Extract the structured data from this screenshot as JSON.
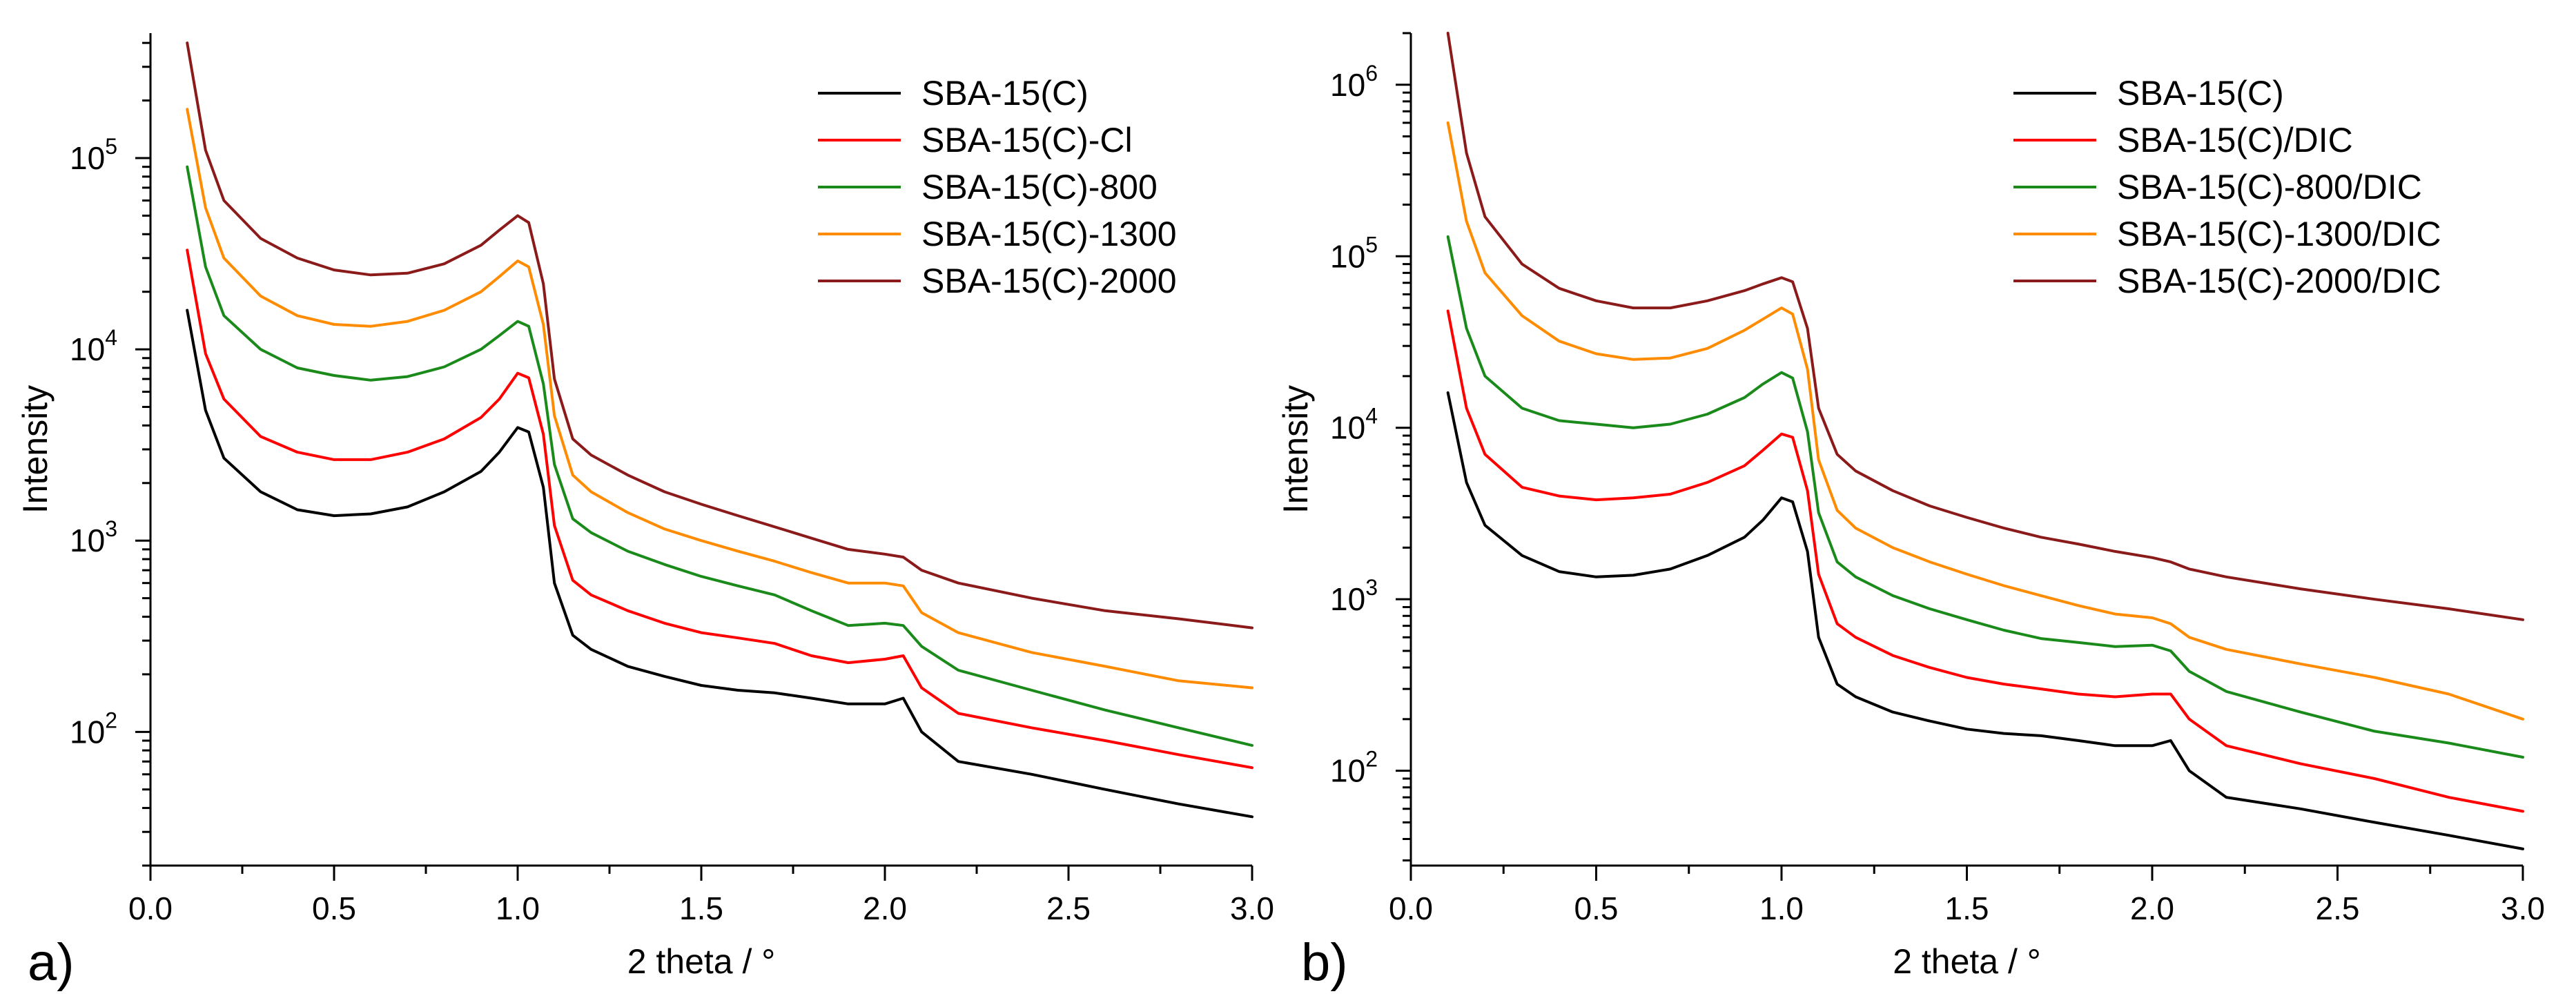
{
  "chart_data": [
    {
      "type": "line",
      "panel_label": "a)",
      "xlabel": "2 theta / °",
      "ylabel": "Intensity",
      "xlim": [
        0.0,
        3.0
      ],
      "ylim": [
        20,
        450000
      ],
      "yscale": "log",
      "x_ticks": [
        "0.0",
        "0.5",
        "1.0",
        "1.5",
        "2.0",
        "2.5",
        "3.0"
      ],
      "y_ticks": [
        {
          "base": "10",
          "exp": "2",
          "value": 100
        },
        {
          "base": "10",
          "exp": "3",
          "value": 1000
        },
        {
          "base": "10",
          "exp": "4",
          "value": 10000
        },
        {
          "base": "10",
          "exp": "5",
          "value": 100000
        }
      ],
      "legend_position": "top-right",
      "series": [
        {
          "name": "SBA-15(C)",
          "color": "#000000",
          "x": [
            0.1,
            0.15,
            0.2,
            0.3,
            0.4,
            0.5,
            0.6,
            0.7,
            0.8,
            0.9,
            0.95,
            1.0,
            1.03,
            1.07,
            1.1,
            1.15,
            1.2,
            1.3,
            1.4,
            1.5,
            1.6,
            1.7,
            1.8,
            1.9,
            2.0,
            2.05,
            2.1,
            2.2,
            2.4,
            2.6,
            2.8,
            3.0
          ],
          "y": [
            16000,
            4800,
            2700,
            1800,
            1450,
            1350,
            1380,
            1500,
            1800,
            2300,
            2900,
            3900,
            3700,
            1900,
            600,
            320,
            270,
            220,
            195,
            175,
            165,
            160,
            150,
            140,
            140,
            150,
            100,
            70,
            60,
            50,
            42,
            36
          ]
        },
        {
          "name": "SBA-15(C)-Cl",
          "color": "#ff0000",
          "x": [
            0.1,
            0.15,
            0.2,
            0.3,
            0.4,
            0.5,
            0.6,
            0.7,
            0.8,
            0.9,
            0.95,
            1.0,
            1.03,
            1.07,
            1.1,
            1.15,
            1.2,
            1.3,
            1.4,
            1.5,
            1.6,
            1.7,
            1.8,
            1.9,
            2.0,
            2.05,
            2.1,
            2.2,
            2.4,
            2.6,
            2.8,
            3.0
          ],
          "y": [
            33000,
            9500,
            5500,
            3500,
            2900,
            2650,
            2650,
            2900,
            3400,
            4400,
            5500,
            7500,
            7100,
            3600,
            1200,
            620,
            520,
            430,
            370,
            330,
            310,
            290,
            250,
            230,
            240,
            250,
            170,
            125,
            105,
            90,
            76,
            65
          ]
        },
        {
          "name": "SBA-15(C)-800",
          "color": "#1a8a1a",
          "x": [
            0.1,
            0.15,
            0.2,
            0.3,
            0.4,
            0.5,
            0.6,
            0.7,
            0.8,
            0.9,
            0.95,
            1.0,
            1.03,
            1.07,
            1.1,
            1.15,
            1.2,
            1.3,
            1.4,
            1.5,
            1.6,
            1.7,
            1.8,
            1.9,
            2.0,
            2.05,
            2.1,
            2.2,
            2.4,
            2.6,
            2.8,
            3.0
          ],
          "y": [
            90000,
            27000,
            15000,
            10000,
            8000,
            7300,
            6900,
            7200,
            8100,
            10000,
            11800,
            14000,
            13200,
            6600,
            2500,
            1300,
            1100,
            880,
            750,
            650,
            580,
            520,
            430,
            360,
            370,
            360,
            280,
            210,
            165,
            130,
            105,
            85
          ]
        },
        {
          "name": "SBA-15(C)-1300",
          "color": "#ff8c00",
          "x": [
            0.1,
            0.15,
            0.2,
            0.3,
            0.4,
            0.5,
            0.6,
            0.7,
            0.8,
            0.9,
            0.95,
            1.0,
            1.03,
            1.07,
            1.1,
            1.15,
            1.2,
            1.3,
            1.4,
            1.5,
            1.6,
            1.7,
            1.8,
            1.9,
            2.0,
            2.05,
            2.1,
            2.2,
            2.4,
            2.6,
            2.8,
            3.0
          ],
          "y": [
            180000,
            55000,
            30000,
            19000,
            15000,
            13500,
            13200,
            14000,
            16000,
            20000,
            24000,
            29000,
            27000,
            13500,
            4500,
            2200,
            1800,
            1400,
            1150,
            1000,
            880,
            780,
            680,
            600,
            600,
            580,
            420,
            330,
            260,
            220,
            185,
            170
          ]
        },
        {
          "name": "SBA-15(C)-2000",
          "color": "#8b1a1a",
          "x": [
            0.1,
            0.15,
            0.2,
            0.3,
            0.4,
            0.5,
            0.6,
            0.7,
            0.8,
            0.9,
            0.95,
            1.0,
            1.03,
            1.07,
            1.1,
            1.15,
            1.2,
            1.3,
            1.4,
            1.5,
            1.6,
            1.7,
            1.8,
            1.9,
            2.0,
            2.05,
            2.1,
            2.2,
            2.4,
            2.6,
            2.8,
            3.0
          ],
          "y": [
            400000,
            110000,
            60000,
            38000,
            30000,
            26000,
            24500,
            25000,
            28000,
            35000,
            42000,
            50000,
            46000,
            22000,
            7000,
            3400,
            2800,
            2200,
            1800,
            1550,
            1350,
            1180,
            1030,
            900,
            850,
            820,
            700,
            600,
            500,
            430,
            390,
            350
          ]
        }
      ]
    },
    {
      "type": "line",
      "panel_label": "b)",
      "xlabel": "2 theta / °",
      "ylabel": "Intensity",
      "xlim": [
        0.0,
        3.0
      ],
      "ylim": [
        28,
        2000000
      ],
      "yscale": "log",
      "x_ticks": [
        "0.0",
        "0.5",
        "1.0",
        "1.5",
        "2.0",
        "2.5",
        "3.0"
      ],
      "y_ticks": [
        {
          "base": "10",
          "exp": "2",
          "value": 100
        },
        {
          "base": "10",
          "exp": "3",
          "value": 1000
        },
        {
          "base": "10",
          "exp": "4",
          "value": 10000
        },
        {
          "base": "10",
          "exp": "5",
          "value": 100000
        },
        {
          "base": "10",
          "exp": "6",
          "value": 1000000
        }
      ],
      "legend_position": "top-right",
      "series": [
        {
          "name": "SBA-15(C)",
          "color": "#000000",
          "x": [
            0.1,
            0.15,
            0.2,
            0.3,
            0.4,
            0.5,
            0.6,
            0.7,
            0.8,
            0.9,
            0.95,
            1.0,
            1.03,
            1.07,
            1.1,
            1.15,
            1.2,
            1.3,
            1.4,
            1.5,
            1.6,
            1.7,
            1.8,
            1.9,
            2.0,
            2.05,
            2.1,
            2.2,
            2.4,
            2.6,
            2.8,
            3.0
          ],
          "y": [
            16000,
            4800,
            2700,
            1800,
            1450,
            1350,
            1380,
            1500,
            1800,
            2300,
            2900,
            3900,
            3700,
            1900,
            600,
            320,
            270,
            220,
            195,
            175,
            165,
            160,
            150,
            140,
            140,
            150,
            100,
            70,
            60,
            50,
            42,
            35
          ]
        },
        {
          "name": "SBA-15(C)/DIC",
          "color": "#ff0000",
          "x": [
            0.1,
            0.15,
            0.2,
            0.3,
            0.4,
            0.5,
            0.6,
            0.7,
            0.8,
            0.9,
            0.95,
            1.0,
            1.03,
            1.07,
            1.1,
            1.15,
            1.2,
            1.3,
            1.4,
            1.5,
            1.6,
            1.7,
            1.8,
            1.9,
            2.0,
            2.05,
            2.1,
            2.2,
            2.4,
            2.6,
            2.8,
            3.0
          ],
          "y": [
            48000,
            13000,
            7000,
            4500,
            4000,
            3800,
            3900,
            4100,
            4800,
            6000,
            7400,
            9200,
            8800,
            4300,
            1400,
            720,
            600,
            470,
            400,
            350,
            320,
            300,
            280,
            270,
            280,
            280,
            200,
            140,
            110,
            90,
            70,
            58
          ]
        },
        {
          "name": "SBA-15(C)-800/DIC",
          "color": "#1a8a1a",
          "x": [
            0.1,
            0.15,
            0.2,
            0.3,
            0.4,
            0.5,
            0.6,
            0.7,
            0.8,
            0.9,
            0.95,
            1.0,
            1.03,
            1.07,
            1.1,
            1.15,
            1.2,
            1.3,
            1.4,
            1.5,
            1.6,
            1.7,
            1.8,
            1.9,
            2.0,
            2.05,
            2.1,
            2.2,
            2.4,
            2.6,
            2.8,
            3.0
          ],
          "y": [
            130000,
            38000,
            20000,
            13000,
            11000,
            10500,
            10000,
            10500,
            12000,
            15000,
            18000,
            21000,
            19500,
            9500,
            3200,
            1650,
            1350,
            1050,
            880,
            760,
            660,
            590,
            560,
            530,
            540,
            500,
            380,
            290,
            220,
            170,
            145,
            120
          ]
        },
        {
          "name": "SBA-15(C)-1300/DIC",
          "color": "#ff8c00",
          "x": [
            0.1,
            0.15,
            0.2,
            0.3,
            0.4,
            0.5,
            0.6,
            0.7,
            0.8,
            0.9,
            0.95,
            1.0,
            1.03,
            1.07,
            1.1,
            1.15,
            1.2,
            1.3,
            1.4,
            1.5,
            1.6,
            1.7,
            1.8,
            1.9,
            2.0,
            2.05,
            2.1,
            2.2,
            2.4,
            2.6,
            2.8,
            3.0
          ],
          "y": [
            600000,
            160000,
            80000,
            45000,
            32000,
            27000,
            25000,
            25500,
            29000,
            37000,
            43000,
            50000,
            46000,
            22000,
            6500,
            3300,
            2600,
            2000,
            1650,
            1400,
            1200,
            1050,
            920,
            820,
            780,
            720,
            600,
            510,
            420,
            350,
            280,
            200
          ]
        },
        {
          "name": "SBA-15(C)-2000/DIC",
          "color": "#8b1a1a",
          "x": [
            0.1,
            0.15,
            0.2,
            0.3,
            0.4,
            0.5,
            0.6,
            0.7,
            0.8,
            0.9,
            0.95,
            1.0,
            1.03,
            1.07,
            1.1,
            1.15,
            1.2,
            1.3,
            1.4,
            1.5,
            1.6,
            1.7,
            1.8,
            1.9,
            2.0,
            2.05,
            2.1,
            2.2,
            2.4,
            2.6,
            2.8,
            3.0
          ],
          "y": [
            2000000,
            400000,
            170000,
            90000,
            65000,
            55000,
            50000,
            50000,
            55000,
            63000,
            69000,
            75000,
            71000,
            38000,
            13000,
            7000,
            5600,
            4300,
            3500,
            3000,
            2600,
            2300,
            2100,
            1900,
            1750,
            1650,
            1500,
            1350,
            1150,
            1000,
            880,
            760
          ]
        }
      ]
    }
  ]
}
